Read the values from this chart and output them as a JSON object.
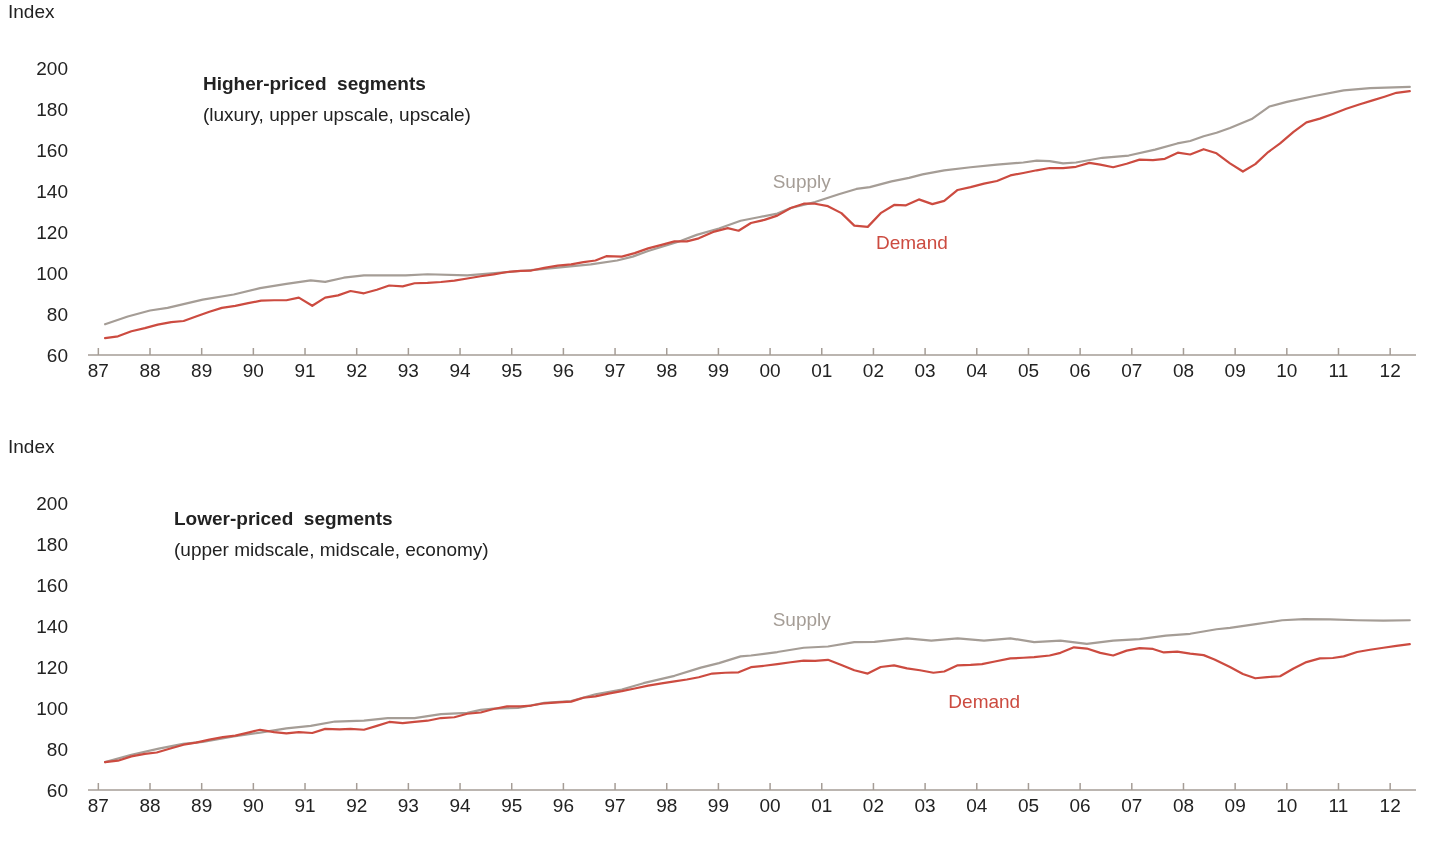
{
  "chart_data": [
    {
      "type": "line",
      "title": "Higher-priced  segments",
      "subtitle": "(luxury, upper upscale, upscale)",
      "ylabel": "Index",
      "xlim": [
        1986.8,
        2012.5
      ],
      "ylim": [
        60,
        200
      ],
      "yticks": [
        60,
        80,
        100,
        120,
        140,
        160,
        180,
        200
      ],
      "xticks": [
        {
          "value": 1987,
          "label": "87"
        },
        {
          "value": 1988,
          "label": "88"
        },
        {
          "value": 1989,
          "label": "89"
        },
        {
          "value": 1990,
          "label": "90"
        },
        {
          "value": 1991,
          "label": "91"
        },
        {
          "value": 1992,
          "label": "92"
        },
        {
          "value": 1993,
          "label": "93"
        },
        {
          "value": 1994,
          "label": "94"
        },
        {
          "value": 1995,
          "label": "95"
        },
        {
          "value": 1996,
          "label": "96"
        },
        {
          "value": 1997,
          "label": "97"
        },
        {
          "value": 1998,
          "label": "98"
        },
        {
          "value": 1999,
          "label": "99"
        },
        {
          "value": 2000,
          "label": "00"
        },
        {
          "value": 2001,
          "label": "01"
        },
        {
          "value": 2002,
          "label": "02"
        },
        {
          "value": 2003,
          "label": "03"
        },
        {
          "value": 2004,
          "label": "04"
        },
        {
          "value": 2005,
          "label": "05"
        },
        {
          "value": 2006,
          "label": "06"
        },
        {
          "value": 2007,
          "label": "07"
        },
        {
          "value": 2008,
          "label": "08"
        },
        {
          "value": 2009,
          "label": "09"
        },
        {
          "value": 2010,
          "label": "10"
        },
        {
          "value": 2011,
          "label": "11"
        },
        {
          "value": 2012,
          "label": "12"
        }
      ],
      "series": [
        {
          "name": "Supply",
          "color": "#a59d96",
          "x": [
            1987.13,
            1987.57,
            1988,
            1988.34,
            1989.02,
            1989.62,
            1990.13,
            1990.64,
            1991.11,
            1991.39,
            1991.75,
            1992.14,
            1992.95,
            1993.37,
            1994.14,
            1994.99,
            1995.59,
            1996.53,
            1997.04,
            1997.34,
            1997.64,
            1998.24,
            1998.58,
            1999.01,
            1999.43,
            1999.8,
            2000.14,
            2000.4,
            2000.87,
            2001.33,
            2001.67,
            2001.93,
            2002.35,
            2002.69,
            2002.95,
            2003.37,
            2003.88,
            2004.39,
            2004.9,
            2005.16,
            2005.41,
            2005.67,
            2005.92,
            2006.43,
            2006.94,
            2007.45,
            2007.88,
            2008.13,
            2008.39,
            2008.64,
            2008.9,
            2009.32,
            2009.66,
            2010,
            2010.51,
            2011.1,
            2011.61,
            2012.38
          ],
          "values": [
            75,
            78.8,
            81.7,
            83,
            87,
            89.5,
            92.6,
            94.7,
            96.4,
            95.7,
            97.7,
            98.8,
            98.8,
            99.4,
            98.8,
            100.6,
            101.9,
            104.2,
            106.1,
            108,
            110.7,
            115.4,
            118.6,
            121.7,
            125.5,
            127.3,
            129,
            131.7,
            134.6,
            138.4,
            141,
            141.9,
            144.7,
            146.4,
            148.1,
            150.1,
            151.6,
            152.9,
            153.9,
            154.8,
            154.6,
            153.5,
            153.9,
            156.2,
            157.3,
            160.2,
            163.2,
            164.4,
            166.7,
            168.4,
            170.7,
            175.1,
            181.2,
            183.5,
            186.2,
            189.1,
            190.2,
            190.8
          ]
        },
        {
          "name": "Demand",
          "color": "#cc4b40",
          "x": [
            1987.13,
            1987.38,
            1987.64,
            1987.9,
            1988.15,
            1988.41,
            1988.65,
            1988.89,
            1989.15,
            1989.39,
            1989.65,
            1989.9,
            1990.15,
            1990.4,
            1990.64,
            1990.88,
            1991.14,
            1991.39,
            1991.64,
            1991.88,
            1992.14,
            1992.39,
            1992.63,
            1992.89,
            1993.12,
            1993.37,
            1993.63,
            1993.89,
            1994.14,
            1994.4,
            1994.65,
            1994.91,
            1995.17,
            1995.38,
            1995.63,
            1995.89,
            1996.15,
            1996.39,
            1996.62,
            1996.83,
            1997.13,
            1997.38,
            1997.64,
            1997.9,
            1998.15,
            1998.39,
            1998.62,
            1998.92,
            1999.18,
            1999.39,
            1999.63,
            1999.89,
            2000.14,
            2000.4,
            2000.65,
            2000.87,
            2001.12,
            2001.38,
            2001.63,
            2001.89,
            2002.14,
            2002.4,
            2002.63,
            2002.88,
            2003.14,
            2003.37,
            2003.63,
            2003.88,
            2004.14,
            2004.39,
            2004.65,
            2004.9,
            2005.16,
            2005.41,
            2005.67,
            2005.92,
            2006.18,
            2006.39,
            2006.64,
            2006.9,
            2007.15,
            2007.41,
            2007.64,
            2007.89,
            2008.13,
            2008.39,
            2008.64,
            2008.9,
            2009.15,
            2009.39,
            2009.64,
            2009.87,
            2010.13,
            2010.38,
            2010.64,
            2010.89,
            2011.15,
            2011.4,
            2011.66,
            2011.89,
            2012.12,
            2012.38
          ],
          "values": [
            68.2,
            69.1,
            71.6,
            73.1,
            74.8,
            76,
            76.6,
            78.8,
            81.1,
            83,
            84,
            85.3,
            86.5,
            86.7,
            86.7,
            88,
            84,
            88,
            89.1,
            91.2,
            90.1,
            91.8,
            93.9,
            93.5,
            95,
            95.2,
            95.6,
            96.3,
            97.3,
            98.4,
            99.3,
            100.5,
            101,
            101.2,
            102.5,
            103.6,
            104.2,
            105.3,
            106.1,
            108.2,
            108,
            109.7,
            112,
            113.7,
            115.4,
            115.4,
            116.9,
            120.2,
            121.9,
            120.6,
            124.4,
            125.9,
            128,
            131.7,
            133.8,
            133.8,
            132.6,
            129.2,
            123.1,
            122.5,
            129.2,
            133.2,
            133,
            135.9,
            133.6,
            135.2,
            140.5,
            141.9,
            143.6,
            144.9,
            147.6,
            148.8,
            150.1,
            151.2,
            151.2,
            151.8,
            153.7,
            152.9,
            151.6,
            153.3,
            155.3,
            155.1,
            155.7,
            158.7,
            157.8,
            160.4,
            158.4,
            153.5,
            149.5,
            153.1,
            159,
            163.2,
            168.8,
            173.5,
            175.3,
            177.6,
            180.1,
            182.2,
            184.2,
            186,
            187.9,
            188.7
          ]
        }
      ]
    },
    {
      "type": "line",
      "title": "Lower-priced  segments",
      "subtitle": "(upper midscale, midscale, economy)",
      "ylabel": "Index",
      "xlim": [
        1986.8,
        2012.5
      ],
      "ylim": [
        60,
        200
      ],
      "yticks": [
        60,
        80,
        100,
        120,
        140,
        160,
        180,
        200
      ],
      "xticks": [
        {
          "value": 1987,
          "label": "87"
        },
        {
          "value": 1988,
          "label": "88"
        },
        {
          "value": 1989,
          "label": "89"
        },
        {
          "value": 1990,
          "label": "90"
        },
        {
          "value": 1991,
          "label": "91"
        },
        {
          "value": 1992,
          "label": "92"
        },
        {
          "value": 1993,
          "label": "93"
        },
        {
          "value": 1994,
          "label": "94"
        },
        {
          "value": 1995,
          "label": "95"
        },
        {
          "value": 1996,
          "label": "96"
        },
        {
          "value": 1997,
          "label": "97"
        },
        {
          "value": 1998,
          "label": "98"
        },
        {
          "value": 1999,
          "label": "99"
        },
        {
          "value": 2000,
          "label": "00"
        },
        {
          "value": 2001,
          "label": "01"
        },
        {
          "value": 2002,
          "label": "02"
        },
        {
          "value": 2003,
          "label": "03"
        },
        {
          "value": 2004,
          "label": "04"
        },
        {
          "value": 2005,
          "label": "05"
        },
        {
          "value": 2006,
          "label": "06"
        },
        {
          "value": 2007,
          "label": "07"
        },
        {
          "value": 2008,
          "label": "08"
        },
        {
          "value": 2009,
          "label": "09"
        },
        {
          "value": 2010,
          "label": "10"
        },
        {
          "value": 2011,
          "label": "11"
        },
        {
          "value": 2012,
          "label": "12"
        }
      ],
      "series": [
        {
          "name": "Supply",
          "color": "#a59d96",
          "x": [
            1987.13,
            1987.64,
            1988.17,
            1988.64,
            1989.02,
            1989.62,
            1990.13,
            1990.64,
            1991.11,
            1991.58,
            1992.14,
            1992.6,
            1993.12,
            1993.63,
            1994.14,
            1994.4,
            1994.65,
            1995.12,
            1995.63,
            1996.15,
            1996.62,
            1997.13,
            1997.55,
            1998.15,
            1998.66,
            1999.01,
            1999.43,
            1999.63,
            2000.14,
            2000.65,
            2001.12,
            2001.63,
            2002.02,
            2002.65,
            2003.12,
            2003.63,
            2004.14,
            2004.65,
            2005.11,
            2005.62,
            2006.13,
            2006.64,
            2007.15,
            2007.66,
            2008.13,
            2008.64,
            2008.9,
            2009.4,
            2009.91,
            2010.33,
            2010.84,
            2011.36,
            2011.87,
            2012.38
          ],
          "values": [
            73.6,
            77.2,
            80.2,
            82.5,
            83.5,
            86.1,
            88,
            90.1,
            91.3,
            93.4,
            93.8,
            95.1,
            95.1,
            97,
            97.6,
            99.1,
            99.7,
            100,
            102.5,
            103.4,
            106.7,
            109,
            112.1,
            115.7,
            119.7,
            121.9,
            125.2,
            125.6,
            127.3,
            129.4,
            130,
            132.1,
            132.3,
            134,
            132.9,
            134,
            132.9,
            134,
            132.1,
            132.9,
            131.3,
            132.9,
            133.6,
            135.3,
            136.2,
            138.4,
            139.1,
            140.9,
            142.8,
            143.4,
            143.2,
            142.8,
            142.6,
            142.8
          ]
        },
        {
          "name": "Demand",
          "color": "#cc4b40",
          "x": [
            1987.13,
            1987.38,
            1987.64,
            1987.9,
            1988.13,
            1988.41,
            1988.65,
            1988.89,
            1989.15,
            1989.41,
            1989.65,
            1989.9,
            1990.13,
            1990.4,
            1990.64,
            1990.88,
            1991.14,
            1991.39,
            1991.67,
            1991.88,
            1992.14,
            1992.39,
            1992.63,
            1992.89,
            1993.12,
            1993.37,
            1993.63,
            1993.89,
            1994.14,
            1994.4,
            1994.65,
            1994.91,
            1995.17,
            1995.38,
            1995.63,
            1995.89,
            1996.15,
            1996.39,
            1996.62,
            1996.87,
            1997.13,
            1997.38,
            1997.64,
            1997.9,
            1998.15,
            1998.39,
            1998.62,
            1998.88,
            1999.13,
            1999.39,
            1999.63,
            1999.89,
            2000.14,
            2000.4,
            2000.65,
            2000.87,
            2001.12,
            2001.38,
            2001.63,
            2001.89,
            2002.14,
            2002.4,
            2002.65,
            2002.9,
            2003.16,
            2003.37,
            2003.63,
            2003.88,
            2004.1,
            2004.35,
            2004.65,
            2004.9,
            2005.11,
            2005.41,
            2005.62,
            2005.88,
            2006.13,
            2006.39,
            2006.64,
            2006.9,
            2007.15,
            2007.41,
            2007.62,
            2007.88,
            2008.13,
            2008.39,
            2008.6,
            2008.9,
            2009.15,
            2009.39,
            2009.62,
            2009.87,
            2010.13,
            2010.38,
            2010.64,
            2010.89,
            2011.1,
            2011.36,
            2011.61,
            2011.87,
            2012.12,
            2012.38
          ],
          "values": [
            73.6,
            74.3,
            76.4,
            77.6,
            78.3,
            80.4,
            82.1,
            83.1,
            84.6,
            85.8,
            86.5,
            88,
            89.4,
            88.2,
            87.6,
            88.2,
            87.8,
            89.8,
            89.6,
            89.8,
            89.4,
            91.3,
            93.2,
            92.6,
            93.2,
            93.8,
            95.1,
            95.5,
            97.2,
            97.8,
            99.5,
            100.8,
            100.8,
            101.2,
            102.3,
            102.7,
            103.1,
            105,
            105.7,
            107,
            108.2,
            109.5,
            110.9,
            112,
            113,
            113.9,
            115,
            116.8,
            117.2,
            117.4,
            119.9,
            120.6,
            121.4,
            122.3,
            123.1,
            123,
            123.5,
            121,
            118.4,
            116.8,
            120,
            120.8,
            119.3,
            118.4,
            117.2,
            117.8,
            120.8,
            121,
            121.4,
            122.7,
            124.2,
            124.5,
            124.8,
            125.6,
            126.9,
            129.6,
            129,
            126.9,
            125.6,
            128,
            129.2,
            128.8,
            127.1,
            127.5,
            126.5,
            125.8,
            123.7,
            120,
            116.6,
            114.5,
            115.1,
            115.5,
            119.3,
            122.4,
            124.2,
            124.4,
            125.2,
            127.3,
            128.4,
            129.4,
            130.3,
            131.2
          ]
        }
      ]
    }
  ]
}
